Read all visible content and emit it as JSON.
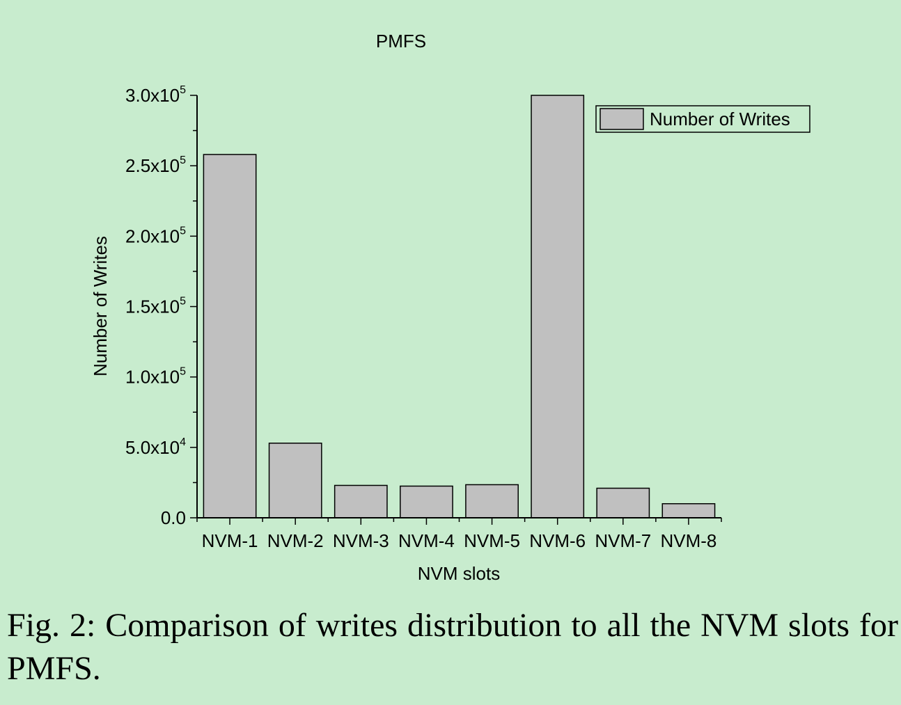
{
  "chart_data": {
    "type": "bar",
    "title": "PMFS",
    "xlabel": "NVM slots",
    "ylabel": "Number of Writes",
    "categories": [
      "NVM-1",
      "NVM-2",
      "NVM-3",
      "NVM-4",
      "NVM-5",
      "NVM-6",
      "NVM-7",
      "NVM-8"
    ],
    "series": [
      {
        "name": "Number of Writes",
        "values": [
          258000,
          53000,
          23000,
          22500,
          23500,
          300000,
          21000,
          10000
        ]
      }
    ],
    "ylim": [
      0,
      300000
    ],
    "y_ticks": [
      {
        "value": 0,
        "mantissa": "0.0",
        "exp": ""
      },
      {
        "value": 50000,
        "mantissa": "5.0x10",
        "exp": "4"
      },
      {
        "value": 100000,
        "mantissa": "1.0x10",
        "exp": "5"
      },
      {
        "value": 150000,
        "mantissa": "1.5x10",
        "exp": "5"
      },
      {
        "value": 200000,
        "mantissa": "2.0x10",
        "exp": "5"
      },
      {
        "value": 250000,
        "mantissa": "2.5x10",
        "exp": "5"
      },
      {
        "value": 300000,
        "mantissa": "3.0x10",
        "exp": "5"
      }
    ],
    "legend_position": "top-right",
    "bar_color": "#c0c0c0",
    "grid": false
  },
  "caption": "Fig. 2: Comparison of writes distribution to all the NVM slots for PMFS."
}
